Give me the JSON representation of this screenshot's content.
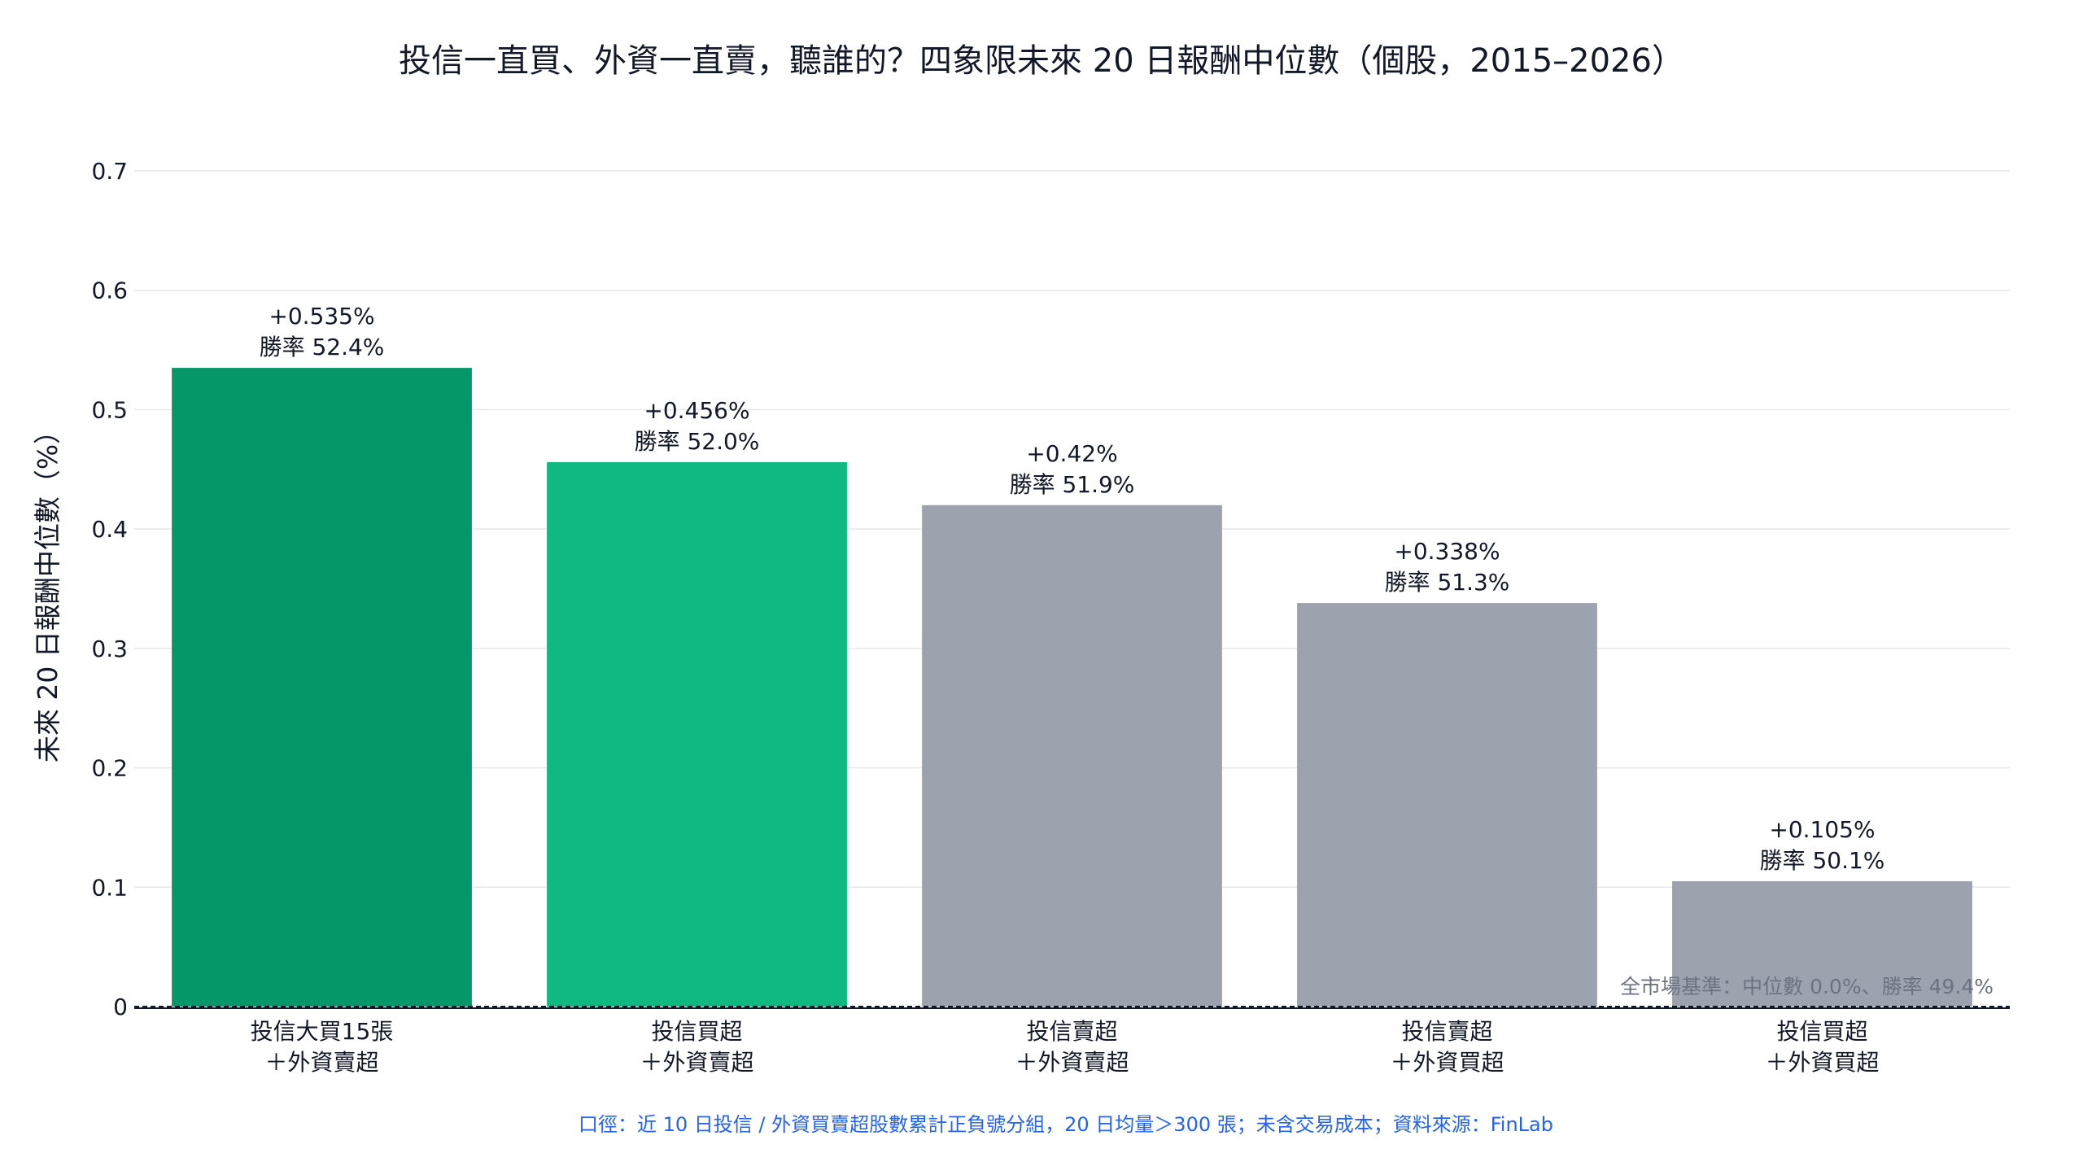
{
  "chart_data": {
    "type": "bar",
    "title": "投信一直買、外資一直賣，聽誰的？四象限未來 20 日報酬中位數（個股，2015–2026）",
    "ylabel": "未來 20 日報酬中位數（%）",
    "xlabel": "",
    "ylim": [
      0,
      0.7
    ],
    "yticks": [
      {
        "value": 0,
        "label": "0"
      },
      {
        "value": 0.1,
        "label": "0.1"
      },
      {
        "value": 0.2,
        "label": "0.2"
      },
      {
        "value": 0.3,
        "label": "0.3"
      },
      {
        "value": 0.4,
        "label": "0.4"
      },
      {
        "value": 0.5,
        "label": "0.5"
      },
      {
        "value": 0.6,
        "label": "0.6"
      },
      {
        "value": 0.7,
        "label": "0.7"
      }
    ],
    "grid": true,
    "categories": [
      [
        "投信大買15張",
        "＋外資賣超"
      ],
      [
        "投信買超",
        "＋外資賣超"
      ],
      [
        "投信賣超",
        "＋外資賣超"
      ],
      [
        "投信賣超",
        "＋外資買超"
      ],
      [
        "投信買超",
        "＋外資買超"
      ]
    ],
    "values": [
      0.535,
      0.456,
      0.42,
      0.338,
      0.105
    ],
    "value_labels": [
      "+0.535%",
      "+0.456%",
      "+0.42%",
      "+0.338%",
      "+0.105%"
    ],
    "win_rate_labels": [
      "勝率 52.4%",
      "勝率 52.0%",
      "勝率 51.9%",
      "勝率 51.3%",
      "勝率 50.1%"
    ],
    "bar_colors": [
      "#059669",
      "#10b981",
      "#9ca3af",
      "#9ca3af",
      "#9ca3af"
    ],
    "baseline": {
      "value": 0,
      "label": "全市場基準：中位數 0.0%、勝率 49.4%"
    },
    "footnote": "口徑：近 10 日投信 / 外資買賣超股數累計正負號分組，20 日均量＞300 張；未含交易成本；資料來源：FinLab",
    "colors": {
      "gridline": "#e5e7eb",
      "axis": "#111827",
      "text": "#111827",
      "baseline_label": "#6b7280",
      "footnote": "#2563eb"
    }
  }
}
